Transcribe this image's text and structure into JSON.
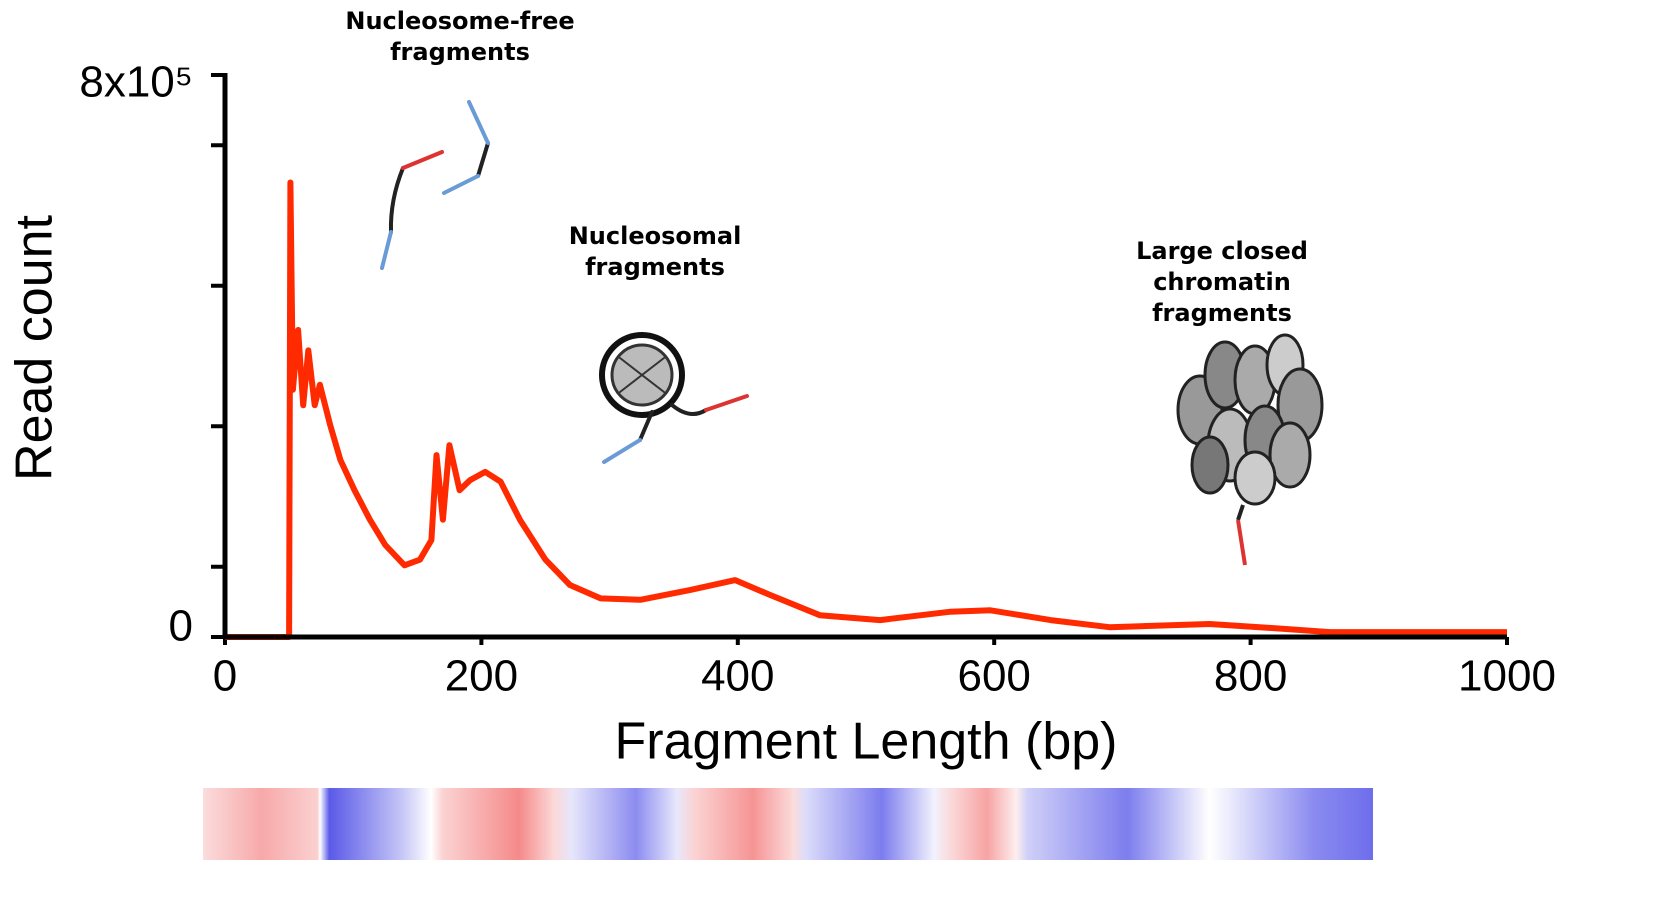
{
  "chart_data": {
    "type": "line",
    "x_label": "Fragment Length (bp)",
    "y_label": "Read count",
    "xlim": [
      0,
      1000
    ],
    "xticks": [
      0,
      200,
      400,
      600,
      800,
      1000
    ],
    "ylim": [
      0,
      800000
    ],
    "yticks": [
      0,
      {
        "value": 800000,
        "label": "8x10⁵"
      }
    ],
    "y_minor_ticks": [
      100000,
      300000,
      500000,
      700000
    ],
    "series": [
      {
        "color": "#ff2a00",
        "x": [
          0,
          49,
          50,
          51,
          53,
          57,
          61,
          65,
          70,
          74,
          82,
          90,
          101,
          113,
          125,
          140,
          152,
          161,
          165,
          170,
          175,
          183,
          191,
          203,
          215,
          230,
          250,
          269,
          293,
          324,
          363,
          398,
          425,
          464,
          511,
          566,
          597,
          644,
          690,
          768,
          807,
          862,
          1000
        ],
        "values": [
          0,
          0,
          0,
          647000,
          352000,
          437000,
          330000,
          408000,
          330000,
          359000,
          302000,
          252000,
          209000,
          167000,
          131000,
          102000,
          110000,
          138000,
          259000,
          167000,
          273000,
          209000,
          223000,
          235000,
          221000,
          167000,
          110000,
          74000,
          55000,
          53000,
          67000,
          81000,
          60000,
          31000,
          24000,
          36000,
          38000,
          24000,
          14000,
          18500,
          14000,
          7000,
          7000
        ]
      }
    ],
    "annotations": [
      {
        "lines": [
          "Nucleosome-free",
          "fragments"
        ]
      },
      {
        "lines": [
          "Nucleosomal",
          "fragments"
        ]
      },
      {
        "lines": [
          "Large closed",
          "chromatin",
          "fragments"
        ]
      }
    ]
  }
}
